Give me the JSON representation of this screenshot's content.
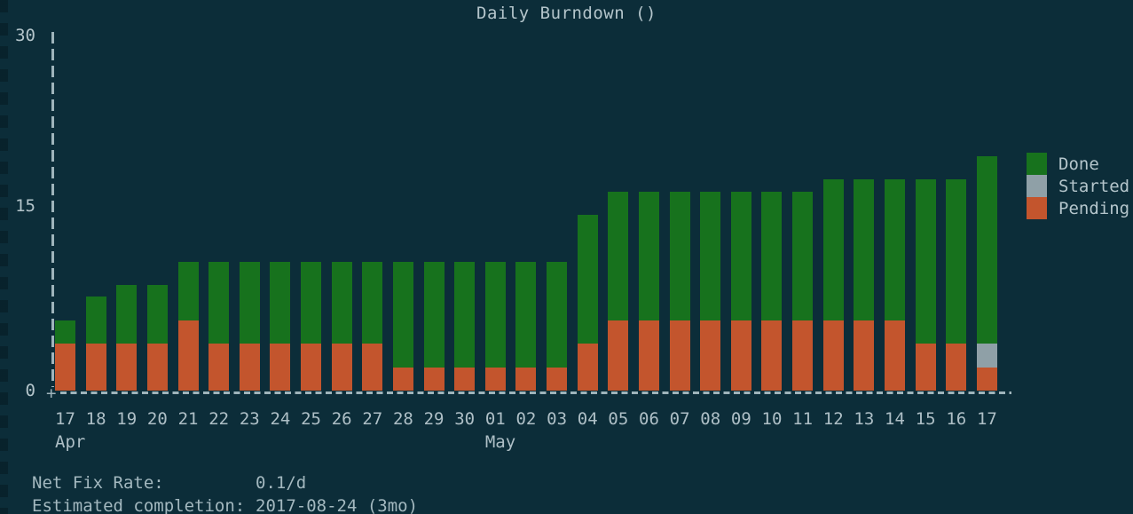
{
  "window": {
    "title": "Daily Burndown ()"
  },
  "colors": {
    "background": "#0c2d39",
    "done": "#17721d",
    "started": "#8fa0a7",
    "pending": "#c3552d",
    "axis": "#9fb4bb",
    "text": "#b4c5cb"
  },
  "axis": {
    "origin_glyph": "+"
  },
  "chart_data": {
    "type": "bar",
    "stacked": true,
    "title": "Daily Burndown ()",
    "xlabel": "",
    "ylabel": "",
    "ylim": [
      0,
      30
    ],
    "yticks": [
      30,
      15,
      0
    ],
    "ytick_labels": [
      "30",
      "15",
      "0"
    ],
    "grid": false,
    "legend_position": "right",
    "categories": [
      "17",
      "18",
      "19",
      "20",
      "21",
      "22",
      "23",
      "24",
      "25",
      "26",
      "27",
      "28",
      "29",
      "30",
      "01",
      "02",
      "03",
      "04",
      "05",
      "06",
      "07",
      "08",
      "09",
      "10",
      "11",
      "12",
      "13",
      "14",
      "15",
      "16",
      "17"
    ],
    "month_markers": [
      {
        "label": "Apr",
        "index": 0
      },
      {
        "label": "May",
        "index": 14
      }
    ],
    "series": [
      {
        "name": "Done",
        "color": "#17721d",
        "values": [
          2,
          4,
          5,
          5,
          5,
          7,
          7,
          7,
          7,
          7,
          7,
          9,
          9,
          9,
          9,
          9,
          9,
          11,
          11,
          11,
          11,
          11,
          11,
          11,
          11,
          12,
          12,
          12,
          14,
          14,
          16
        ]
      },
      {
        "name": "Started",
        "color": "#8fa0a7",
        "values": [
          0,
          0,
          0,
          0,
          0,
          0,
          0,
          0,
          0,
          0,
          0,
          0,
          0,
          0,
          0,
          0,
          0,
          0,
          0,
          0,
          0,
          0,
          0,
          0,
          0,
          0,
          0,
          0,
          0,
          0,
          2
        ]
      },
      {
        "name": "Pending",
        "color": "#c3552d",
        "values": [
          4,
          4,
          4,
          4,
          6,
          4,
          4,
          4,
          4,
          4,
          4,
          2,
          2,
          2,
          2,
          2,
          2,
          4,
          6,
          6,
          6,
          6,
          6,
          6,
          6,
          6,
          6,
          6,
          4,
          4,
          2
        ]
      }
    ]
  },
  "legend": [
    {
      "label": "Done",
      "color": "#17721d"
    },
    {
      "label": "Started",
      "color": "#8fa0a7"
    },
    {
      "label": "Pending",
      "color": "#c3552d"
    }
  ],
  "footer": {
    "net_fix_rate": {
      "label": "Net Fix Rate:",
      "value": "0.1/d"
    },
    "estimated_completion": {
      "label": "Estimated completion:",
      "value": "2017-08-24 (3mo)"
    }
  }
}
